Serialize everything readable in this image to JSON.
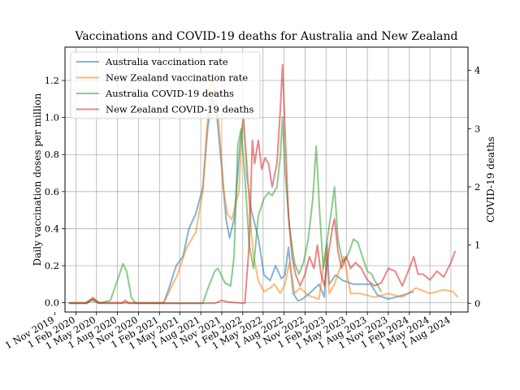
{
  "chart_data": {
    "type": "line",
    "title": "Vaccinations and COVID-19 deaths for Australia and New Zealand",
    "ylabel": "Daily vaccination doses per million",
    "y2label": "COVID-19 deaths",
    "xlabel": "",
    "ylim": [
      -0.05,
      1.38
    ],
    "y2lim": [
      -0.15,
      4.4
    ],
    "xlim": [
      "2019-12-15",
      "2024-10-15"
    ],
    "grid": true,
    "legend_position": "top-left",
    "x_ticks": [
      "1 Nov 2019",
      "1 Feb 2020",
      "1 May 2020",
      "1 Aug 2020",
      "1 Nov 2020",
      "1 Feb 2021",
      "1 May 2021",
      "1 Aug 2021",
      "1 Nov 2021",
      "1 Feb 2022",
      "1 May 2022",
      "1 Aug 2022",
      "1 Nov 2022",
      "1 Feb 2023",
      "1 May 2023",
      "1 Aug 2023",
      "1 Nov 2023",
      "1 Feb 2024",
      "1 May 2024",
      "1 Aug 2024"
    ],
    "x_tick_dates": [
      "2019-11-01",
      "2020-02-01",
      "2020-05-01",
      "2020-08-01",
      "2020-11-01",
      "2021-02-01",
      "2021-05-01",
      "2021-08-01",
      "2021-11-01",
      "2022-02-01",
      "2022-05-01",
      "2022-08-01",
      "2022-11-01",
      "2023-02-01",
      "2023-05-01",
      "2023-08-01",
      "2023-11-01",
      "2024-02-01",
      "2024-05-01",
      "2024-08-01"
    ],
    "y_ticks": [
      0.0,
      0.2,
      0.4,
      0.6,
      0.8,
      1.0,
      1.2
    ],
    "y_tick_labels": [
      "0.0",
      "0.2",
      "0.4",
      "0.6",
      "0.8",
      "1.0",
      "1.2"
    ],
    "y2_ticks": [
      0,
      1,
      2,
      3,
      4
    ],
    "y2_tick_labels": [
      "0",
      "1",
      "2",
      "3",
      "4"
    ],
    "series": [
      {
        "name": "Australia vaccination rate",
        "axis": "left",
        "color": "#1f77b4",
        "points": [
          [
            "2020-01-01",
            0
          ],
          [
            "2020-03-15",
            0
          ],
          [
            "2020-04-15",
            0.02
          ],
          [
            "2020-05-15",
            0
          ],
          [
            "2021-02-20",
            0
          ],
          [
            "2021-03-15",
            0.08
          ],
          [
            "2021-04-15",
            0.2
          ],
          [
            "2021-05-15",
            0.25
          ],
          [
            "2021-06-10",
            0.4
          ],
          [
            "2021-07-10",
            0.48
          ],
          [
            "2021-08-10",
            0.62
          ],
          [
            "2021-09-01",
            0.95
          ],
          [
            "2021-09-20",
            1.1
          ],
          [
            "2021-10-10",
            1.02
          ],
          [
            "2021-11-01",
            0.72
          ],
          [
            "2021-11-20",
            0.45
          ],
          [
            "2021-12-05",
            0.35
          ],
          [
            "2021-12-25",
            0.45
          ],
          [
            "2022-01-20",
            0.85
          ],
          [
            "2022-02-05",
            1.0
          ],
          [
            "2022-02-20",
            0.68
          ],
          [
            "2022-03-10",
            0.5
          ],
          [
            "2022-04-10",
            0.35
          ],
          [
            "2022-05-05",
            0.15
          ],
          [
            "2022-06-01",
            0.12
          ],
          [
            "2022-06-25",
            0.2
          ],
          [
            "2022-07-20",
            0.13
          ],
          [
            "2022-08-05",
            0.15
          ],
          [
            "2022-08-20",
            0.3
          ],
          [
            "2022-09-10",
            0.05
          ],
          [
            "2022-10-01",
            0.01
          ],
          [
            "2022-10-20",
            0.02
          ],
          [
            "2022-11-20",
            0.05
          ],
          [
            "2023-01-01",
            0.1
          ],
          [
            "2023-01-25",
            0.03
          ],
          [
            "2023-02-05",
            0.32
          ],
          [
            "2023-02-15",
            0.1
          ],
          [
            "2023-03-15",
            0.15
          ],
          [
            "2023-04-15",
            0.12
          ],
          [
            "2023-06-01",
            0.1
          ],
          [
            "2023-08-15",
            0.1
          ],
          [
            "2023-09-15",
            0.04
          ],
          [
            "2023-11-01",
            0.02
          ],
          [
            "2024-01-01",
            0.04
          ],
          [
            "2024-02-20",
            0.06
          ]
        ]
      },
      {
        "name": "New Zealand vaccination rate",
        "axis": "left",
        "color": "#ff7f0e",
        "points": [
          [
            "2020-01-01",
            0
          ],
          [
            "2020-03-15",
            0
          ],
          [
            "2020-04-15",
            0.03
          ],
          [
            "2020-05-10",
            0
          ],
          [
            "2021-02-20",
            0
          ],
          [
            "2021-04-20",
            0.15
          ],
          [
            "2021-06-01",
            0.3
          ],
          [
            "2021-07-10",
            0.38
          ],
          [
            "2021-08-10",
            0.6
          ],
          [
            "2021-08-25",
            0.9
          ],
          [
            "2021-09-15",
            1.22
          ],
          [
            "2021-10-01",
            1.15
          ],
          [
            "2021-10-20",
            0.95
          ],
          [
            "2021-11-10",
            0.6
          ],
          [
            "2021-11-25",
            0.48
          ],
          [
            "2021-12-15",
            0.45
          ],
          [
            "2022-01-15",
            0.6
          ],
          [
            "2022-02-01",
            1.0
          ],
          [
            "2022-02-20",
            0.75
          ],
          [
            "2022-03-05",
            0.45
          ],
          [
            "2022-03-20",
            0.25
          ],
          [
            "2022-04-10",
            0.12
          ],
          [
            "2022-05-05",
            0.06
          ],
          [
            "2022-06-01",
            0.08
          ],
          [
            "2022-06-20",
            0.1
          ],
          [
            "2022-07-15",
            0.05
          ],
          [
            "2022-08-05",
            0.1
          ],
          [
            "2022-08-25",
            0.22
          ],
          [
            "2022-09-15",
            0.05
          ],
          [
            "2022-10-10",
            0.08
          ],
          [
            "2022-11-15",
            0.04
          ],
          [
            "2023-01-01",
            0.02
          ],
          [
            "2023-02-01",
            0.3
          ],
          [
            "2023-02-15",
            0.05
          ],
          [
            "2023-03-10",
            0.1
          ],
          [
            "2023-04-20",
            0.25
          ],
          [
            "2023-05-20",
            0.05
          ],
          [
            "2023-07-01",
            0.05
          ],
          [
            "2023-09-01",
            0.03
          ],
          [
            "2023-11-01",
            0.05
          ],
          [
            "2024-01-01",
            0.03
          ],
          [
            "2024-03-01",
            0.08
          ],
          [
            "2024-05-01",
            0.05
          ],
          [
            "2024-07-01",
            0.07
          ],
          [
            "2024-08-10",
            0.06
          ],
          [
            "2024-09-01",
            0.03
          ]
        ]
      },
      {
        "name": "Australia COVID-19 deaths",
        "axis": "right",
        "color": "#2ca02c",
        "points": [
          [
            "2020-01-01",
            0
          ],
          [
            "2020-03-15",
            0
          ],
          [
            "2020-04-10",
            0.05
          ],
          [
            "2020-05-10",
            0
          ],
          [
            "2020-07-01",
            0.05
          ],
          [
            "2020-08-10",
            0.5
          ],
          [
            "2020-08-25",
            0.68
          ],
          [
            "2020-09-10",
            0.55
          ],
          [
            "2020-10-01",
            0.1
          ],
          [
            "2020-10-20",
            0
          ],
          [
            "2021-08-10",
            0
          ],
          [
            "2021-09-01",
            0.25
          ],
          [
            "2021-10-01",
            0.55
          ],
          [
            "2021-10-15",
            0.6
          ],
          [
            "2021-11-15",
            0.35
          ],
          [
            "2021-12-10",
            0.3
          ],
          [
            "2021-12-25",
            0.8
          ],
          [
            "2022-01-10",
            2.7
          ],
          [
            "2022-01-25",
            3.0
          ],
          [
            "2022-02-10",
            2.2
          ],
          [
            "2022-03-01",
            1.0
          ],
          [
            "2022-03-20",
            0.6
          ],
          [
            "2022-04-10",
            1.5
          ],
          [
            "2022-05-05",
            1.8
          ],
          [
            "2022-05-25",
            1.9
          ],
          [
            "2022-06-10",
            1.85
          ],
          [
            "2022-07-01",
            2.0
          ],
          [
            "2022-07-15",
            2.5
          ],
          [
            "2022-07-25",
            3.2
          ],
          [
            "2022-08-05",
            2.3
          ],
          [
            "2022-08-25",
            1.3
          ],
          [
            "2022-09-15",
            0.7
          ],
          [
            "2022-10-05",
            0.5
          ],
          [
            "2022-10-25",
            0.7
          ],
          [
            "2022-11-15",
            1.1
          ],
          [
            "2022-12-05",
            1.8
          ],
          [
            "2022-12-20",
            2.7
          ],
          [
            "2023-01-05",
            1.5
          ],
          [
            "2023-01-20",
            0.6
          ],
          [
            "2023-02-10",
            1.2
          ],
          [
            "2023-02-25",
            1.6
          ],
          [
            "2023-03-10",
            2.0
          ],
          [
            "2023-03-25",
            1.1
          ],
          [
            "2023-04-15",
            0.7
          ],
          [
            "2023-05-10",
            0.85
          ],
          [
            "2023-06-01",
            1.1
          ],
          [
            "2023-06-20",
            1.05
          ],
          [
            "2023-07-10",
            0.8
          ],
          [
            "2023-08-01",
            0.55
          ],
          [
            "2023-08-20",
            0.5
          ],
          [
            "2023-09-01",
            0.4
          ],
          [
            "2023-10-01",
            0.2
          ]
        ]
      },
      {
        "name": "New Zealand COVID-19 deaths",
        "axis": "right",
        "color": "#d62728",
        "points": [
          [
            "2020-01-01",
            0
          ],
          [
            "2020-03-20",
            0
          ],
          [
            "2020-04-15",
            0.08
          ],
          [
            "2020-05-15",
            0
          ],
          [
            "2020-08-20",
            0
          ],
          [
            "2020-09-05",
            0.05
          ],
          [
            "2020-09-20",
            0
          ],
          [
            "2021-10-01",
            0
          ],
          [
            "2021-11-01",
            0.05
          ],
          [
            "2021-12-01",
            0.02
          ],
          [
            "2022-02-10",
            0
          ],
          [
            "2022-03-01",
            1.0
          ],
          [
            "2022-03-15",
            2.8
          ],
          [
            "2022-03-25",
            2.4
          ],
          [
            "2022-04-10",
            2.8
          ],
          [
            "2022-04-25",
            2.3
          ],
          [
            "2022-05-10",
            2.5
          ],
          [
            "2022-05-25",
            2.4
          ],
          [
            "2022-06-10",
            2.0
          ],
          [
            "2022-07-01",
            2.4
          ],
          [
            "2022-07-15",
            3.3
          ],
          [
            "2022-07-25",
            4.1
          ],
          [
            "2022-08-05",
            3.0
          ],
          [
            "2022-08-20",
            1.5
          ],
          [
            "2022-09-05",
            0.8
          ],
          [
            "2022-09-20",
            0.5
          ],
          [
            "2022-10-10",
            0.3
          ],
          [
            "2022-11-01",
            0.5
          ],
          [
            "2022-11-20",
            0.8
          ],
          [
            "2022-12-10",
            0.6
          ],
          [
            "2022-12-25",
            1.0
          ],
          [
            "2023-01-10",
            0.5
          ],
          [
            "2023-01-25",
            0.3
          ],
          [
            "2023-02-10",
            0.8
          ],
          [
            "2023-03-01",
            1.3
          ],
          [
            "2023-03-10",
            1.45
          ],
          [
            "2023-03-25",
            0.9
          ],
          [
            "2023-04-10",
            0.6
          ],
          [
            "2023-05-01",
            0.8
          ],
          [
            "2023-05-20",
            0.6
          ],
          [
            "2023-06-10",
            0.7
          ],
          [
            "2023-07-05",
            0.6
          ],
          [
            "2023-08-01",
            0.4
          ],
          [
            "2023-09-01",
            0.3
          ],
          [
            "2023-10-01",
            0.35
          ],
          [
            "2023-11-01",
            0.6
          ],
          [
            "2023-12-01",
            0.55
          ],
          [
            "2024-01-01",
            0.3
          ],
          [
            "2024-02-01",
            0.6
          ],
          [
            "2024-02-20",
            0.8
          ],
          [
            "2024-03-10",
            0.5
          ],
          [
            "2024-04-01",
            0.5
          ],
          [
            "2024-05-01",
            0.4
          ],
          [
            "2024-06-01",
            0.55
          ],
          [
            "2024-07-01",
            0.45
          ],
          [
            "2024-08-01",
            0.7
          ],
          [
            "2024-08-20",
            0.9
          ]
        ]
      }
    ]
  }
}
